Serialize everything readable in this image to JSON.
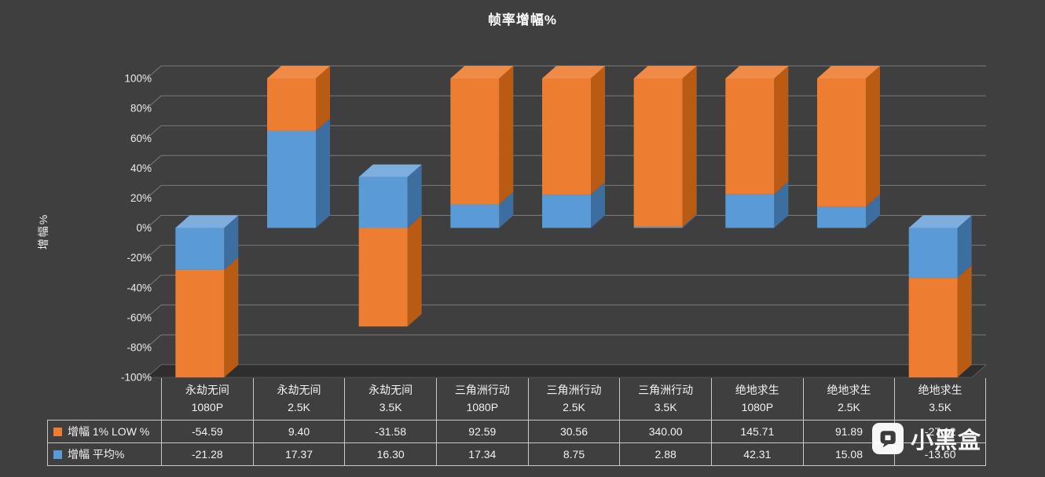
{
  "page": {
    "background": "#3F3F3F"
  },
  "chart": {
    "title": "帧率增幅%",
    "y_axis_title": "增幅%"
  },
  "chart_data": {
    "type": "bar",
    "variant": "3d-100pct-stacked-column",
    "title": "帧率增幅%",
    "ylabel": "增幅%",
    "xlabel": "",
    "ylim": [
      -100,
      100
    ],
    "grid": true,
    "legend_position": "data-table-left",
    "y_ticks": [
      "100%",
      "80%",
      "60%",
      "40%",
      "20%",
      "0%",
      "-20%",
      "-40%",
      "-60%",
      "-80%",
      "-100%"
    ],
    "categories": [
      {
        "line1": "永劫无间",
        "line2": "1080P"
      },
      {
        "line1": "永劫无间",
        "line2": "2.5K"
      },
      {
        "line1": "永劫无间",
        "line2": "3.5K"
      },
      {
        "line1": "三角洲行动",
        "line2": "1080P"
      },
      {
        "line1": "三角洲行动",
        "line2": "2.5K"
      },
      {
        "line1": "三角洲行动",
        "line2": "3.5K"
      },
      {
        "line1": "绝地求生",
        "line2": "1080P"
      },
      {
        "line1": "绝地求生",
        "line2": "2.5K"
      },
      {
        "line1": "绝地求生",
        "line2": "3.5K"
      }
    ],
    "series": [
      {
        "name": "增幅 1% LOW %",
        "color": "#ED7D31",
        "side_color": "#B95B13",
        "top_color": "#F08A47",
        "values": [
          -54.59,
          9.4,
          -31.58,
          92.59,
          30.56,
          340.0,
          145.71,
          91.89,
          -27.12
        ]
      },
      {
        "name": "增幅 平均%",
        "color": "#5B9BD5",
        "side_color": "#3C6E9F",
        "top_color": "#7EAEDD",
        "values": [
          -21.28,
          17.37,
          16.3,
          17.34,
          8.75,
          2.88,
          42.31,
          15.08,
          -13.6
        ]
      }
    ]
  },
  "watermark": {
    "text": "小黑盒"
  }
}
